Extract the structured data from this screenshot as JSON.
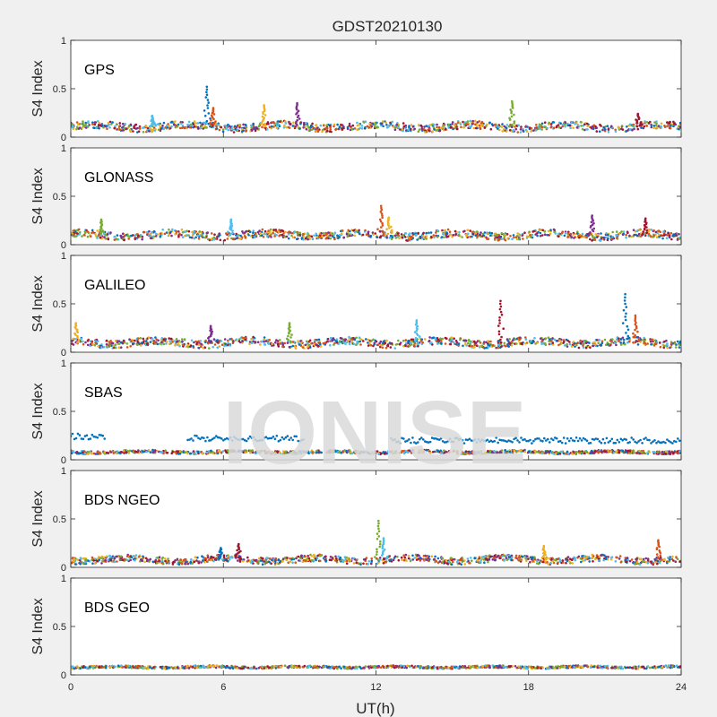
{
  "figure": {
    "title": "GDST20210130",
    "xlabel": "UT(h)",
    "watermark": "IONISE",
    "series_colors": [
      "#0072BD",
      "#D95319",
      "#EDB120",
      "#7E2F8E",
      "#77AC30",
      "#4DBEEE",
      "#A2142F"
    ]
  },
  "chart_data": [
    {
      "type": "scatter",
      "panel_label": "GPS",
      "ylabel": "S4 Index",
      "xlim": [
        0,
        24
      ],
      "ylim": [
        0,
        1
      ],
      "xticks": [
        0,
        6,
        12,
        18,
        24
      ],
      "yticks": [
        0,
        0.5,
        1
      ],
      "show_xticklabels": false,
      "baseline_s4": 0.11,
      "spread": 0.04,
      "peaks": [
        {
          "t": 5.35,
          "s4": 0.52
        },
        {
          "t": 5.6,
          "s4": 0.3
        },
        {
          "t": 7.6,
          "s4": 0.33
        },
        {
          "t": 8.9,
          "s4": 0.35
        },
        {
          "t": 17.35,
          "s4": 0.37
        },
        {
          "t": 3.2,
          "s4": 0.22
        },
        {
          "t": 22.3,
          "s4": 0.24
        }
      ]
    },
    {
      "type": "scatter",
      "panel_label": "GLONASS",
      "ylabel": "S4 Index",
      "xlim": [
        0,
        24
      ],
      "ylim": [
        0,
        1
      ],
      "xticks": [
        0,
        6,
        12,
        18,
        24
      ],
      "yticks": [
        0,
        0.5,
        1
      ],
      "show_xticklabels": false,
      "baseline_s4": 0.1,
      "spread": 0.04,
      "peaks": [
        {
          "t": 12.2,
          "s4": 0.4
        },
        {
          "t": 12.5,
          "s4": 0.28
        },
        {
          "t": 20.5,
          "s4": 0.3
        },
        {
          "t": 1.2,
          "s4": 0.26
        },
        {
          "t": 6.3,
          "s4": 0.26
        },
        {
          "t": 22.6,
          "s4": 0.27
        }
      ]
    },
    {
      "type": "scatter",
      "panel_label": "GALILEO",
      "ylabel": "S4 Index",
      "xlim": [
        0,
        24
      ],
      "ylim": [
        0,
        1
      ],
      "xticks": [
        0,
        6,
        12,
        18,
        24
      ],
      "yticks": [
        0,
        0.5,
        1
      ],
      "show_xticklabels": false,
      "baseline_s4": 0.1,
      "spread": 0.04,
      "peaks": [
        {
          "t": 0.2,
          "s4": 0.3
        },
        {
          "t": 5.5,
          "s4": 0.27
        },
        {
          "t": 8.6,
          "s4": 0.3
        },
        {
          "t": 13.6,
          "s4": 0.33
        },
        {
          "t": 16.9,
          "s4": 0.53
        },
        {
          "t": 21.8,
          "s4": 0.6
        },
        {
          "t": 22.2,
          "s4": 0.38
        }
      ]
    },
    {
      "type": "scatter",
      "panel_label": "SBAS",
      "ylabel": "S4 Index",
      "xlim": [
        0,
        24
      ],
      "ylim": [
        0,
        1
      ],
      "xticks": [
        0,
        6,
        12,
        18,
        24
      ],
      "yticks": [
        0,
        0.5,
        1
      ],
      "show_xticklabels": false,
      "baseline_s4": 0.08,
      "spread": 0.015,
      "elevated_segments": [
        {
          "t0": 0.0,
          "t1": 1.4,
          "s4": 0.24
        },
        {
          "t0": 4.6,
          "t1": 9.2,
          "s4": 0.22
        },
        {
          "t0": 12.6,
          "t1": 24.0,
          "s4": 0.2
        }
      ],
      "peaks": []
    },
    {
      "type": "scatter",
      "panel_label": "BDS NGEO",
      "ylabel": "S4 Index",
      "xlim": [
        0,
        24
      ],
      "ylim": [
        0,
        1
      ],
      "xticks": [
        0,
        6,
        12,
        18,
        24
      ],
      "yticks": [
        0,
        0.5,
        1
      ],
      "show_xticklabels": false,
      "baseline_s4": 0.08,
      "spread": 0.035,
      "peaks": [
        {
          "t": 12.1,
          "s4": 0.48
        },
        {
          "t": 12.3,
          "s4": 0.3
        },
        {
          "t": 6.6,
          "s4": 0.24
        },
        {
          "t": 5.9,
          "s4": 0.2
        },
        {
          "t": 23.1,
          "s4": 0.28
        },
        {
          "t": 18.6,
          "s4": 0.22
        }
      ]
    },
    {
      "type": "scatter",
      "panel_label": "BDS GEO",
      "ylabel": "S4 Index",
      "xlim": [
        0,
        24
      ],
      "ylim": [
        0,
        1
      ],
      "xticks": [
        0,
        6,
        12,
        18,
        24
      ],
      "yticks": [
        0,
        0.5,
        1
      ],
      "show_xticklabels": true,
      "baseline_s4": 0.08,
      "spread": 0.012,
      "peaks": []
    }
  ]
}
